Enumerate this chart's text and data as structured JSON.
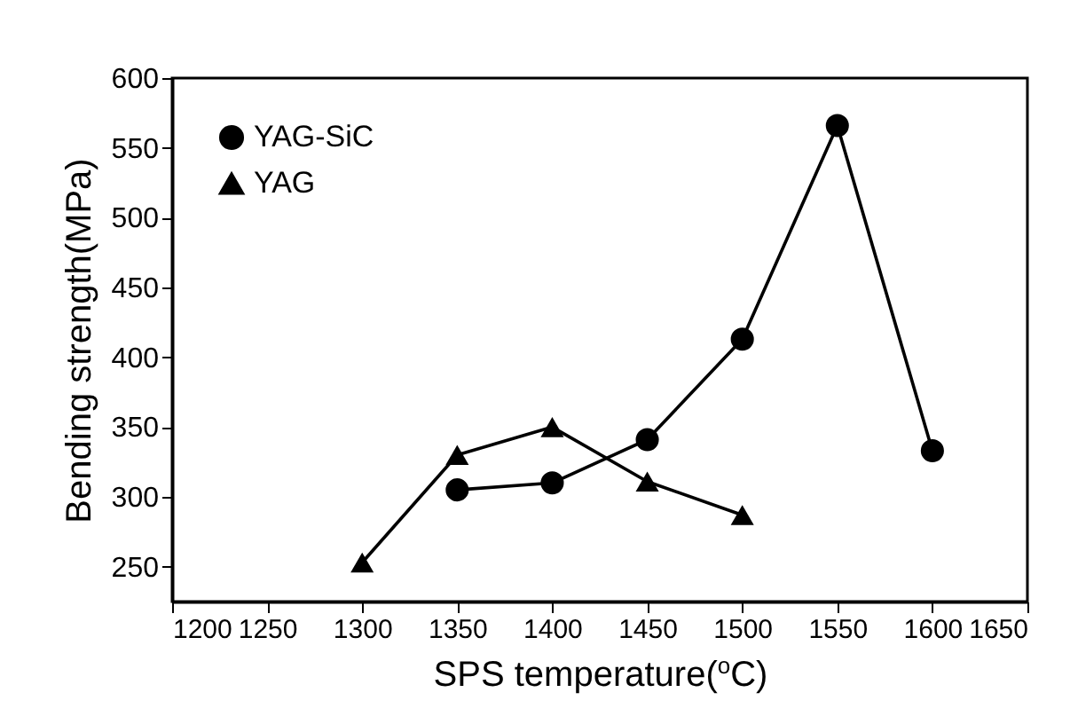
{
  "chart_data": {
    "type": "line",
    "xlabel": "SPS temperature($^{o}$C)",
    "ylabel": "Bending strength(MPa)",
    "xlim": [
      1200,
      1650
    ],
    "xticks": [
      1200,
      1250,
      1300,
      1350,
      1400,
      1450,
      1500,
      1550,
      1600,
      1650
    ],
    "ylim": [
      225,
      600
    ],
    "yticks": [
      250,
      300,
      350,
      400,
      450,
      500,
      550,
      600
    ],
    "grid": false,
    "legend": "top left",
    "line_style": "solid",
    "series": [
      {
        "name": "YAG-SiC",
        "color": "#000000",
        "marker": "circle",
        "x": [
          1350,
          1400,
          1450,
          1500,
          1550,
          1600
        ],
        "values": [
          305,
          310,
          341,
          413,
          566,
          333
        ]
      },
      {
        "name": "YAG",
        "color": "#000000",
        "marker": "triangle",
        "x": [
          1300,
          1350,
          1400,
          1450,
          1500
        ],
        "values": [
          253,
          330,
          350,
          311,
          287
        ]
      }
    ]
  }
}
